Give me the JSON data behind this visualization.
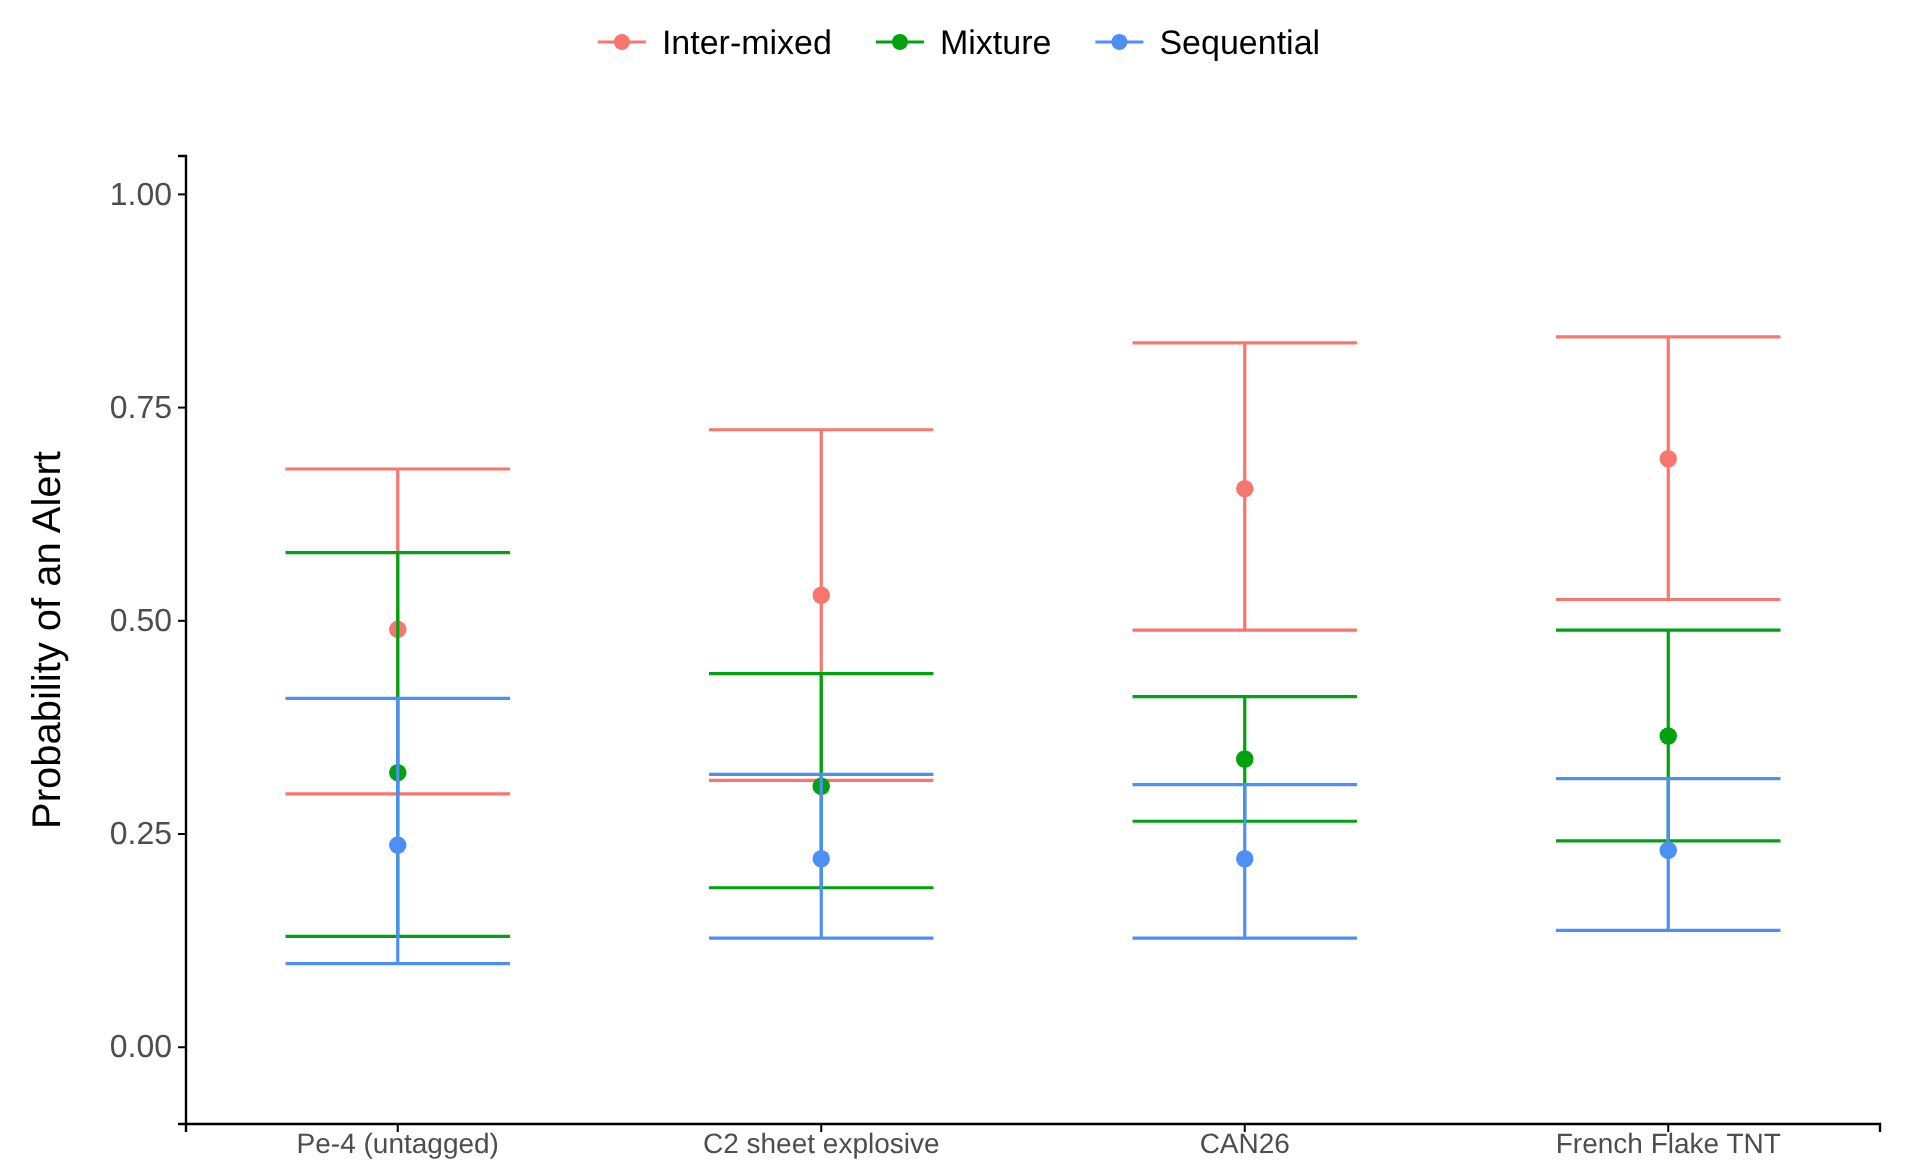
{
  "chart_data": {
    "type": "scatter",
    "ylabel": "Probability of an Alert",
    "categories": [
      "Pe-4 (untagged)",
      "C2 sheet explosive",
      "CAN26",
      "French Flake TNT"
    ],
    "series": [
      {
        "name": "Inter-mixed",
        "color": "#f8766d",
        "values": [
          0.49,
          0.53,
          0.655,
          0.69
        ],
        "errors": [
          [
            0.297,
            0.678
          ],
          [
            0.313,
            0.724
          ],
          [
            0.489,
            0.826
          ],
          [
            0.525,
            0.833
          ]
        ]
      },
      {
        "name": "Mixture",
        "color": "#00a30f",
        "values": [
          0.322,
          0.306,
          0.338,
          0.365
        ],
        "errors": [
          [
            0.13,
            0.58
          ],
          [
            0.187,
            0.438
          ],
          [
            0.265,
            0.411
          ],
          [
            0.242,
            0.489
          ]
        ]
      },
      {
        "name": "Sequential",
        "color": "#4d8ff5",
        "values": [
          0.237,
          0.221,
          0.221,
          0.231
        ],
        "errors": [
          [
            0.098,
            0.409
          ],
          [
            0.128,
            0.32
          ],
          [
            0.128,
            0.308
          ],
          [
            0.137,
            0.315
          ]
        ]
      }
    ],
    "ylim": [
      -0.09,
      1.045
    ],
    "yticks": [
      {
        "value": 0,
        "label": "0.00"
      },
      {
        "value": 0.25,
        "label": "0.25"
      },
      {
        "value": 0.5,
        "label": "0.50"
      },
      {
        "value": 0.75,
        "label": "0.75"
      },
      {
        "value": 1,
        "label": "1.00"
      }
    ],
    "legend": "top",
    "marker": "circle",
    "grid": false
  }
}
